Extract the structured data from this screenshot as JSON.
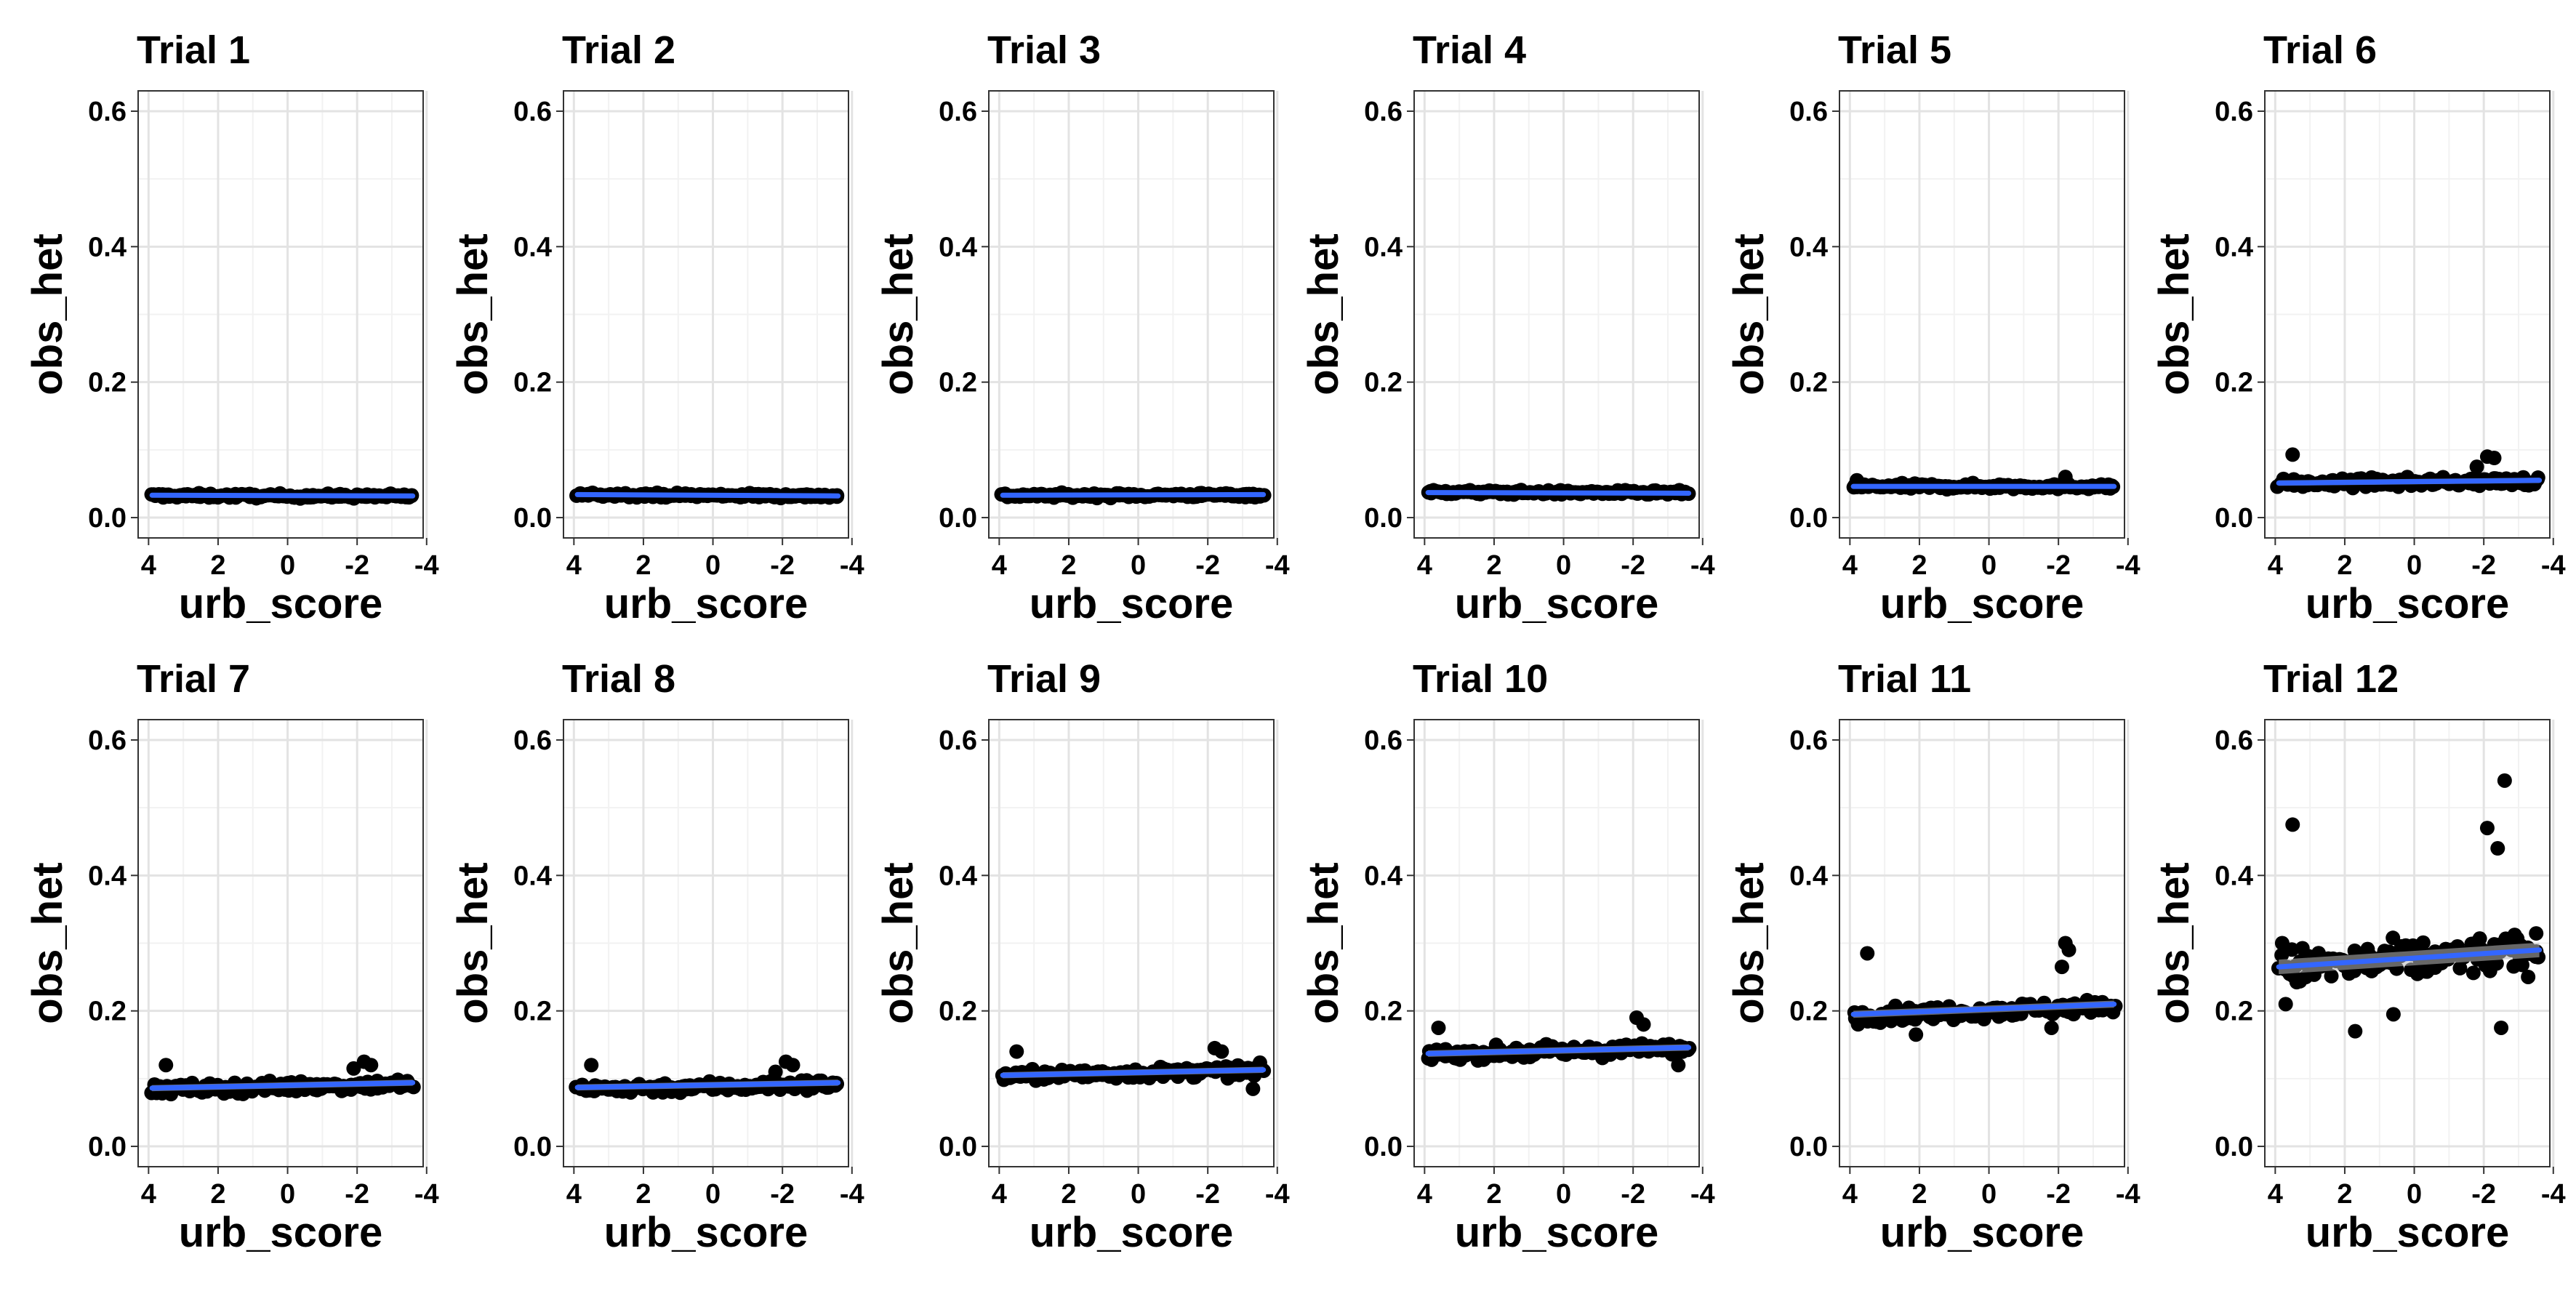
{
  "chart_data": {
    "type": "scatter",
    "layout": "facet grid, 2 rows x 6 columns",
    "xlabel": "urb_score",
    "ylabel": "obs_het",
    "xlim": [
      4.3,
      -3.9
    ],
    "x_reversed": true,
    "ylim": [
      -0.03,
      0.63
    ],
    "xticks": [
      "4",
      "2",
      "0",
      "-2",
      "-4"
    ],
    "yticks": [
      "0.0",
      "0.2",
      "0.4",
      "0.6"
    ],
    "grid": true,
    "point_color": "#000000",
    "trend_color": "#3366FF",
    "ci_color": "#BBBBBB",
    "panels": [
      {
        "title": "Trial 1",
        "center": 0.032,
        "spread": 0.004,
        "trend": [
          0.033,
          0.032
        ],
        "outliers": []
      },
      {
        "title": "Trial 2",
        "center": 0.033,
        "spread": 0.004,
        "trend": [
          0.034,
          0.032
        ],
        "outliers": []
      },
      {
        "title": "Trial 3",
        "center": 0.033,
        "spread": 0.004,
        "trend": [
          0.033,
          0.034
        ],
        "outliers": []
      },
      {
        "title": "Trial 4",
        "center": 0.037,
        "spread": 0.004,
        "trend": [
          0.037,
          0.036
        ],
        "outliers": []
      },
      {
        "title": "Trial 5",
        "center": 0.046,
        "spread": 0.005,
        "trend": [
          0.046,
          0.046
        ],
        "outliers": [
          [
            3.8,
            0.055
          ],
          [
            -2.2,
            0.06
          ]
        ]
      },
      {
        "title": "Trial 6",
        "center": 0.052,
        "spread": 0.008,
        "trend": [
          0.051,
          0.055
        ],
        "outliers": [
          [
            3.5,
            0.093
          ],
          [
            -2.1,
            0.09
          ],
          [
            -2.3,
            0.088
          ],
          [
            -1.8,
            0.075
          ]
        ]
      },
      {
        "title": "Trial 7",
        "center": 0.088,
        "spread": 0.01,
        "trend": [
          0.086,
          0.094
        ],
        "outliers": [
          [
            3.5,
            0.12
          ],
          [
            -2.2,
            0.125
          ],
          [
            -2.4,
            0.12
          ],
          [
            -1.9,
            0.115
          ]
        ]
      },
      {
        "title": "Trial 8",
        "center": 0.088,
        "spread": 0.01,
        "trend": [
          0.087,
          0.094
        ],
        "outliers": [
          [
            3.5,
            0.12
          ],
          [
            -2.1,
            0.125
          ],
          [
            -2.3,
            0.12
          ],
          [
            -1.8,
            0.11
          ]
        ]
      },
      {
        "title": "Trial 9",
        "center": 0.108,
        "spread": 0.01,
        "trend": [
          0.105,
          0.113
        ],
        "outliers": [
          [
            3.5,
            0.14
          ],
          [
            -2.2,
            0.145
          ],
          [
            -2.4,
            0.14
          ],
          [
            -3.3,
            0.085
          ]
        ]
      },
      {
        "title": "Trial 10",
        "center": 0.14,
        "spread": 0.011,
        "trend": [
          0.137,
          0.146
        ],
        "outliers": [
          [
            3.6,
            0.175
          ],
          [
            -2.1,
            0.19
          ],
          [
            -2.3,
            0.18
          ],
          [
            -3.3,
            0.12
          ]
        ]
      },
      {
        "title": "Trial 11",
        "center": 0.2,
        "spread": 0.013,
        "trend": [
          0.195,
          0.21
        ],
        "outliers": [
          [
            3.5,
            0.285
          ],
          [
            -2.2,
            0.3
          ],
          [
            -2.3,
            0.29
          ],
          [
            -2.1,
            0.265
          ],
          [
            2.1,
            0.165
          ],
          [
            -1.8,
            0.175
          ]
        ]
      },
      {
        "title": "Trial 12",
        "center": 0.275,
        "spread": 0.035,
        "trend": [
          0.265,
          0.29
        ],
        "outliers": [
          [
            3.5,
            0.475
          ],
          [
            3.8,
            0.3
          ],
          [
            3.7,
            0.21
          ],
          [
            -2.6,
            0.54
          ],
          [
            -2.1,
            0.47
          ],
          [
            -2.4,
            0.44
          ],
          [
            1.7,
            0.17
          ],
          [
            -2.5,
            0.175
          ],
          [
            0.6,
            0.195
          ],
          [
            -3.5,
            0.28
          ]
        ]
      }
    ]
  }
}
